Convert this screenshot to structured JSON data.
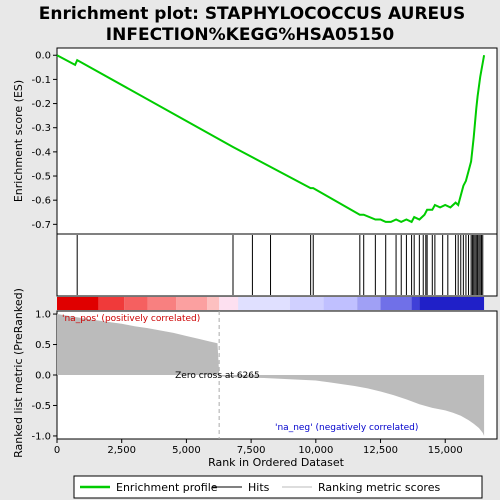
{
  "chart_data": {
    "type": "line",
    "title_line1": "Enrichment plot: STAPHYLOCOCCUS AUREUS",
    "title_line2": "INFECTION%KEGG%HSA05150",
    "es_panel": {
      "ylabel": "Enrichment score (ES)",
      "ylim": [
        -0.74,
        0.03
      ],
      "yticks": [
        "0.0",
        "-0.1",
        "-0.2",
        "-0.3",
        "-0.4",
        "-0.5",
        "-0.6",
        "-0.7"
      ],
      "ytick_values": [
        0.0,
        -0.1,
        -0.2,
        -0.3,
        -0.4,
        -0.5,
        -0.6,
        -0.7
      ],
      "grid": false,
      "series_color": "#00cc00",
      "profile_x": [
        0,
        700,
        780,
        6800,
        9800,
        9900,
        11700,
        11850,
        12300,
        12500,
        12700,
        12900,
        13100,
        13300,
        13500,
        13700,
        13800,
        14000,
        14200,
        14300,
        14500,
        14600,
        14800,
        15000,
        15200,
        15400,
        15500,
        15600,
        15700,
        15800,
        15900,
        16000,
        16050,
        16100,
        16150,
        16200,
        16250,
        16300,
        16350,
        16400,
        16450,
        16500
      ],
      "profile_y": [
        0.0,
        -0.04,
        -0.02,
        -0.38,
        -0.55,
        -0.55,
        -0.66,
        -0.66,
        -0.68,
        -0.68,
        -0.69,
        -0.69,
        -0.68,
        -0.69,
        -0.68,
        -0.69,
        -0.67,
        -0.68,
        -0.66,
        -0.64,
        -0.64,
        -0.62,
        -0.63,
        -0.62,
        -0.63,
        -0.61,
        -0.62,
        -0.58,
        -0.54,
        -0.52,
        -0.48,
        -0.44,
        -0.39,
        -0.34,
        -0.28,
        -0.22,
        -0.17,
        -0.13,
        -0.09,
        -0.06,
        -0.03,
        0.0
      ]
    },
    "hits": [
      780,
      6800,
      7550,
      8250,
      9800,
      9900,
      11700,
      11850,
      12300,
      12700,
      13100,
      13300,
      13500,
      13700,
      13800,
      14000,
      14150,
      14250,
      14300,
      14500,
      14600,
      14900,
      15100,
      15400,
      15500,
      15600,
      15700,
      15800,
      15900,
      16000,
      16050,
      16100,
      16150,
      16200,
      16250,
      16300,
      16350,
      16400,
      16450
    ],
    "metric_panel": {
      "ylabel": "Ranked list metric (PreRanked)",
      "xlabel": "Rank in Ordered Dataset",
      "ylim": [
        -1.05,
        1.05
      ],
      "yticks": [
        "1.0",
        "0.5",
        "0.0",
        "-0.5",
        "-1.0"
      ],
      "ytick_values": [
        1.0,
        0.5,
        0.0,
        -0.5,
        -1.0
      ],
      "xlim": [
        0,
        17000
      ],
      "xticks": [
        "0",
        "2,500",
        "5,000",
        "7,500",
        "10,000",
        "12,500",
        "15,000"
      ],
      "xtick_values": [
        0,
        2500,
        5000,
        7500,
        10000,
        12500,
        15000
      ],
      "zero_cross_rank": 6265,
      "zero_cross_label": "Zero cross at 6265",
      "pos_label": "'na_pos' (positively correlated)",
      "neg_label": "'na_neg' (negatively correlated)",
      "metric_x": [
        0,
        300,
        600,
        1000,
        1500,
        2000,
        2500,
        3000,
        3500,
        4000,
        4500,
        5000,
        5500,
        5900,
        6200,
        6265,
        6300,
        7000,
        8000,
        9000,
        10000,
        10500,
        11000,
        11500,
        12000,
        12500,
        13000,
        13500,
        14000,
        14500,
        15000,
        15300,
        15600,
        15900,
        16100,
        16300,
        16450,
        16500
      ],
      "metric_y": [
        1.0,
        0.98,
        0.96,
        0.93,
        0.9,
        0.87,
        0.84,
        0.8,
        0.77,
        0.73,
        0.69,
        0.64,
        0.59,
        0.55,
        0.52,
        0.0,
        -0.02,
        -0.04,
        -0.05,
        -0.07,
        -0.09,
        -0.12,
        -0.15,
        -0.18,
        -0.22,
        -0.27,
        -0.33,
        -0.4,
        -0.48,
        -0.54,
        -0.58,
        -0.62,
        -0.67,
        -0.74,
        -0.8,
        -0.87,
        -0.95,
        -1.0
      ]
    },
    "colorbar": {
      "colors": [
        "#e00000",
        "#f03a3a",
        "#f56060",
        "#f88080",
        "#fba0a0",
        "#fdc0c0",
        "#fde0f0",
        "#e0e0ff",
        "#d0d0ff",
        "#c0c0ff",
        "#a0a0f5",
        "#7070e8",
        "#4040d8",
        "#2020c8",
        "#1010b0"
      ],
      "bounds": [
        0,
        1600,
        2600,
        3500,
        4600,
        5800,
        6265,
        7000,
        9000,
        10300,
        11600,
        12500,
        13700,
        14000,
        16500
      ]
    },
    "legend": [
      {
        "label": "Enrichment profile",
        "color": "#00cc00"
      },
      {
        "label": "Hits",
        "color": "#000000"
      },
      {
        "label": "Ranking metric scores",
        "color": "#bbbbbb"
      }
    ]
  }
}
